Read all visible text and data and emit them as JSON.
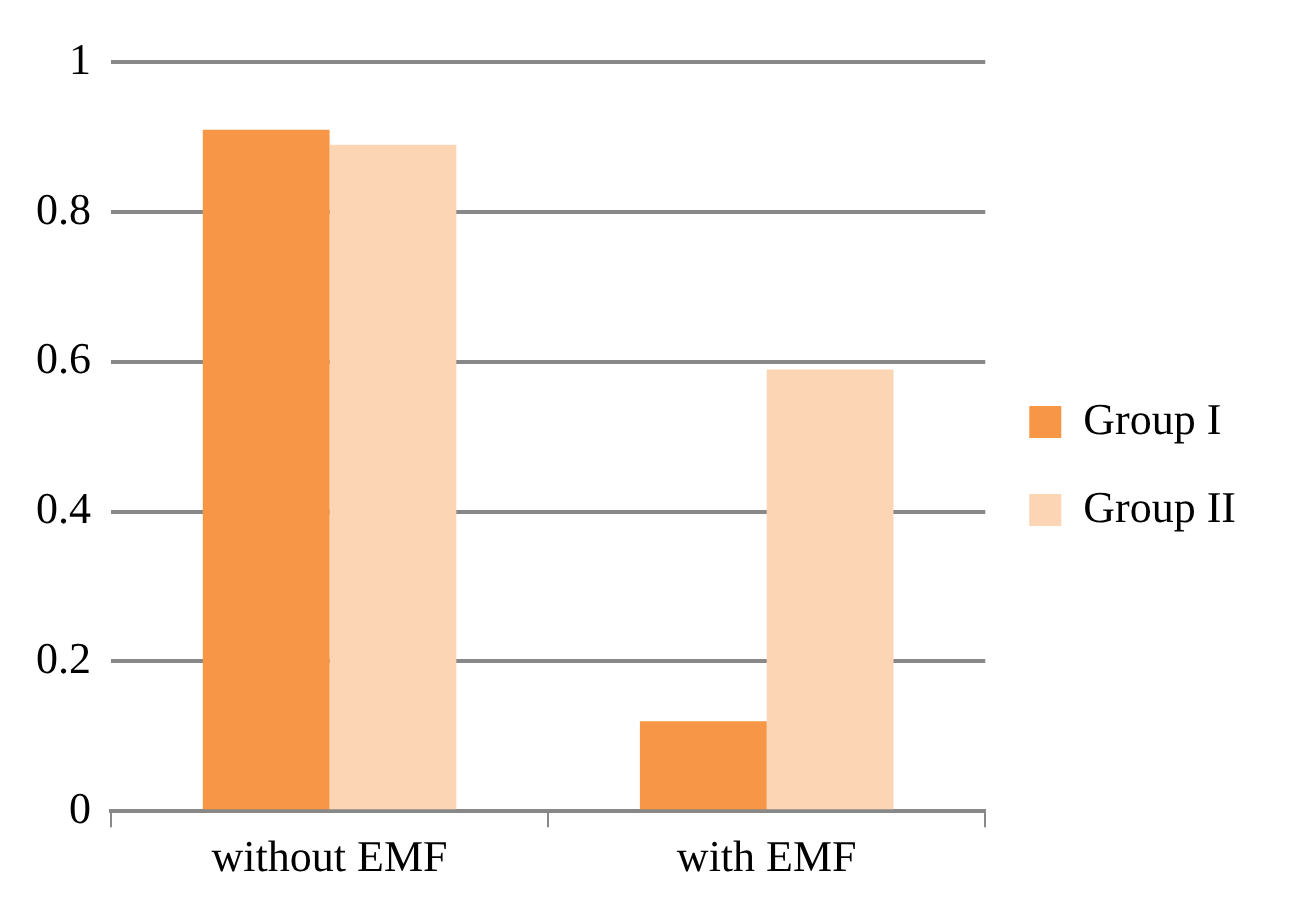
{
  "chart_data": {
    "type": "bar",
    "categories": [
      "without EMF",
      "with EMF"
    ],
    "series": [
      {
        "name": "Group I",
        "color": "#f79646",
        "values": [
          0.91,
          0.12
        ]
      },
      {
        "name": "Group II",
        "color": "#fcd5b5",
        "values": [
          0.89,
          0.59
        ]
      }
    ],
    "ylim": [
      0,
      1
    ],
    "yticks": [
      0,
      0.2,
      0.4,
      0.6,
      0.8,
      1
    ],
    "grid": "y",
    "legend": "right"
  }
}
